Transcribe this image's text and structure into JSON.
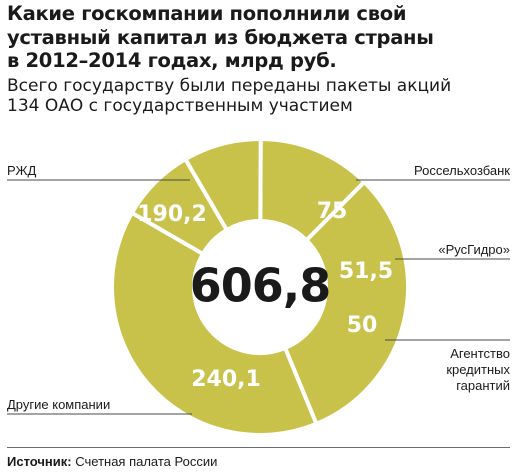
{
  "title_lines": [
    "Какие госкомпании пополнили свой",
    "уставный капитал из бюджета страны",
    "в 2012–2014 годах, млрд руб."
  ],
  "subtitle_lines": [
    "Всего государству были переданы пакеты акций",
    "134 ОАО с государственным участием"
  ],
  "source": {
    "label": "Источник:",
    "text": "Счетная палата России"
  },
  "colors": {
    "slice": "#c9c24a",
    "separator": "#ffffff",
    "leader": "#4a4a4a",
    "text": "#1a1a1a"
  },
  "chart_data": {
    "type": "pie",
    "donut": true,
    "total_label": "606,8",
    "slices": [
      {
        "name": "РЖД",
        "value": 190.2,
        "label": "190,2"
      },
      {
        "name": "Россельхозбанк",
        "value": 75,
        "label": "75"
      },
      {
        "name": "«РусГидро»",
        "value": 51.5,
        "label": "51,5"
      },
      {
        "name": "Агентство кредитных гарантий",
        "value": 50,
        "label": "50"
      },
      {
        "name": "Другие компании",
        "value": 240.1,
        "label": "240,1"
      }
    ]
  }
}
